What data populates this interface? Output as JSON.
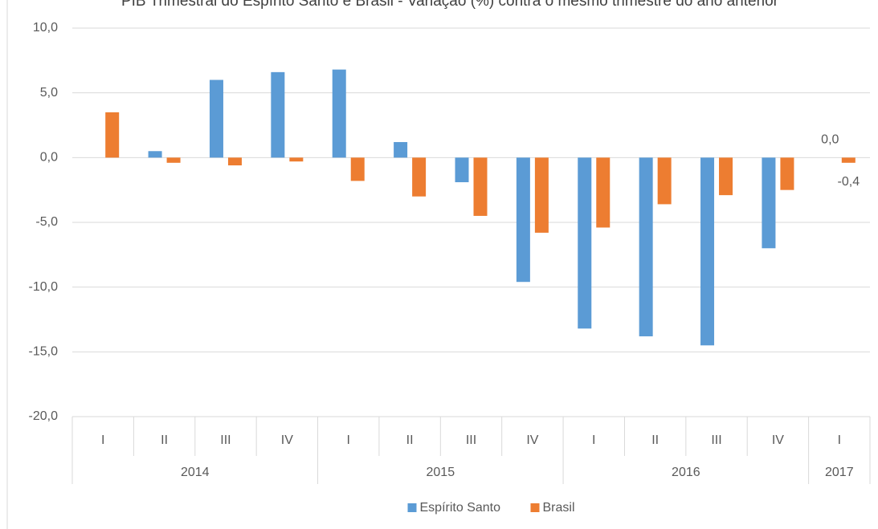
{
  "chart_data": {
    "type": "bar",
    "title": "PIB Trimestral do Espírito Santo e Brasil - Variação (%) contra o mesmo trimestre do ano anterior",
    "groups": [
      {
        "name": "2014",
        "categories": [
          "I",
          "II",
          "III",
          "IV"
        ]
      },
      {
        "name": "2015",
        "categories": [
          "I",
          "II",
          "III",
          "IV"
        ]
      },
      {
        "name": "2016",
        "categories": [
          "I",
          "II",
          "III",
          "IV"
        ]
      },
      {
        "name": "2017",
        "categories": [
          "I"
        ]
      }
    ],
    "series": [
      {
        "name": "Espírito Santo",
        "color": "#5b9bd5",
        "values": [
          null,
          0.5,
          6.0,
          6.6,
          6.8,
          1.2,
          -1.9,
          -9.6,
          -13.2,
          -13.8,
          -14.5,
          -7.0,
          0.0
        ],
        "value_labels": [
          null,
          null,
          null,
          null,
          null,
          null,
          null,
          null,
          null,
          null,
          null,
          null,
          "0,0"
        ]
      },
      {
        "name": "Brasil",
        "color": "#ed7d31",
        "values": [
          3.5,
          -0.4,
          -0.6,
          -0.3,
          -1.8,
          -3.0,
          -4.5,
          -5.8,
          -5.4,
          -3.6,
          -2.9,
          -2.5,
          -0.4
        ],
        "value_labels": [
          null,
          null,
          null,
          null,
          null,
          null,
          null,
          null,
          null,
          null,
          null,
          null,
          "-0,4"
        ]
      }
    ],
    "ylim": [
      -20,
      10
    ],
    "yticks": [
      {
        "value": -20,
        "label": "-20,0"
      },
      {
        "value": -15,
        "label": "-15,0"
      },
      {
        "value": -10,
        "label": "-10,0"
      },
      {
        "value": -5,
        "label": "-5,0"
      },
      {
        "value": 0,
        "label": "0,0"
      },
      {
        "value": 5,
        "label": "5,0"
      },
      {
        "value": 10,
        "label": "10,0"
      }
    ],
    "grid": true,
    "legend": "bottom"
  }
}
